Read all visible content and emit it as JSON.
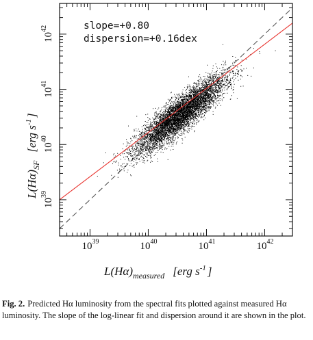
{
  "chart_data": {
    "type": "scatter",
    "x_scale": "log",
    "y_scale": "log",
    "xlim": [
      3e+38,
      3e+42
    ],
    "ylim": [
      2.2e+38,
      3.6e+42
    ],
    "x_ticks": [
      {
        "value": 1e+39,
        "base": "10",
        "exp": "39"
      },
      {
        "value": 1e+40,
        "base": "10",
        "exp": "40"
      },
      {
        "value": 1e+41,
        "base": "10",
        "exp": "41"
      },
      {
        "value": 1e+42,
        "base": "10",
        "exp": "42"
      }
    ],
    "y_ticks": [
      {
        "value": 1e+39,
        "base": "10",
        "exp": "39"
      },
      {
        "value": 1e+40,
        "base": "10",
        "exp": "40"
      },
      {
        "value": 1e+41,
        "base": "10",
        "exp": "41"
      },
      {
        "value": 1e+42,
        "base": "10",
        "exp": "42"
      }
    ],
    "xlabel": {
      "main": "L(Hα)",
      "sub": "measured",
      "unit": "[erg s",
      "unit_exp": "-1",
      "unit_close": "]"
    },
    "ylabel": {
      "main": "L(Hα)",
      "sub": "SF",
      "unit": "[erg s",
      "unit_exp": "-1",
      "unit_close": "]"
    },
    "annotations": {
      "slope": "slope=+0.80",
      "dispersion": "dispersion=+0.16dex"
    },
    "fit_line": {
      "slope": 0.8,
      "color": "#e8332e",
      "points": [
        [
          3e+38,
          1e+39
        ],
        [
          3e+42,
          1.58e+42
        ]
      ]
    },
    "one_to_one_line": {
      "style": "dashed",
      "color": "#555555"
    },
    "scatter": {
      "n_points": 14000,
      "center_log_x": 40.55,
      "center_log_y": 40.55,
      "sd_log_x": 0.38,
      "dispersion_dex": 0.16,
      "slope": 0.8,
      "color": "#000000"
    }
  },
  "caption": {
    "label": "Fig. 2.",
    "text": "Predicted Hα luminosity from the spectral fits plotted against measured Hα luminosity. The slope of the log-linear fit and dispersion around it are shown in the plot."
  }
}
